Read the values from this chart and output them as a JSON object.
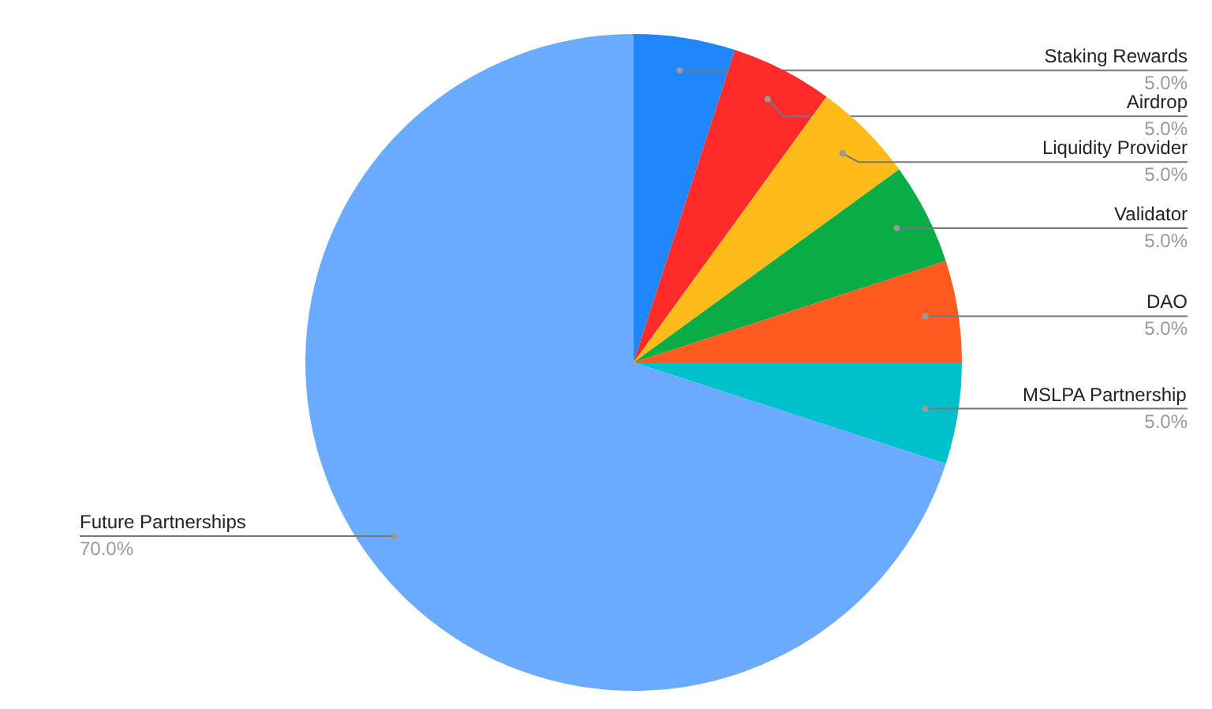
{
  "chart_data": {
    "type": "pie",
    "categories": [
      "Staking Rewards",
      "Airdrop",
      "Liquidity Provider",
      "Validator",
      "DAO",
      "MSLPA Partnership",
      "Future Partnerships"
    ],
    "values": [
      5,
      5,
      5,
      5,
      5,
      5,
      70
    ],
    "value_labels": [
      "5.0%",
      "5.0%",
      "5.0%",
      "5.0%",
      "5.0%",
      "5.0%",
      "70.0%"
    ],
    "colors": [
      "#1f87fb",
      "#ff2b2b",
      "#ffbb1a",
      "#0aac46",
      "#ff5a1f",
      "#00c1cb",
      "#6aabff"
    ]
  }
}
